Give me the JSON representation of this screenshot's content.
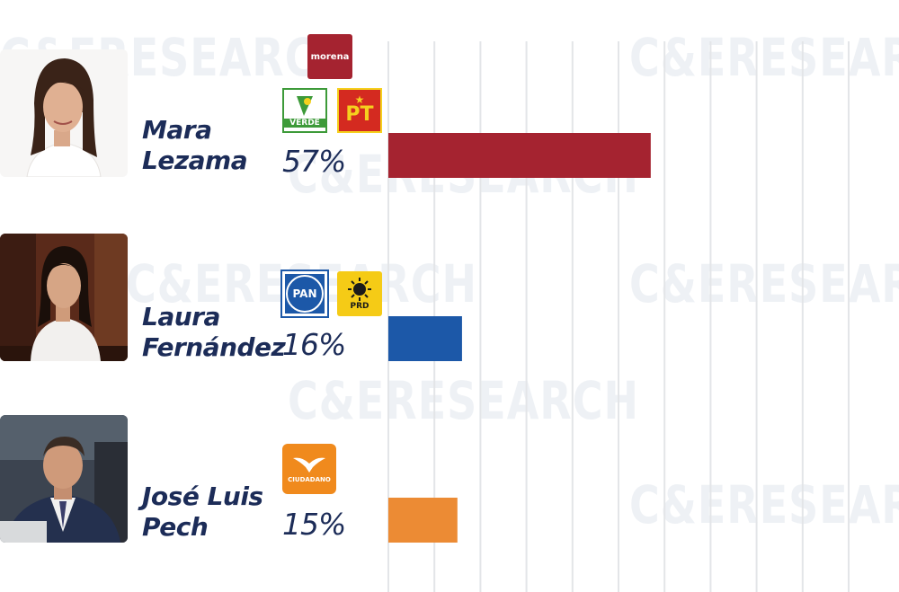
{
  "watermark_text": "C&ERESEARCH",
  "parties": {
    "morena": {
      "label": "morena",
      "color": "#a52330"
    },
    "verde": {
      "label": "VERDE",
      "color": "#3d9a39"
    },
    "pt": {
      "label": "PT",
      "color": "#d42a20",
      "text_color": "#f5d01e"
    },
    "pan": {
      "label": "PAN",
      "color": "#1c58a8"
    },
    "prd": {
      "label": "PRD",
      "color": "#f5cb16"
    },
    "mc": {
      "label": "CIUDADANO",
      "color": "#f08a1d"
    }
  },
  "chart_data": {
    "type": "bar",
    "orientation": "horizontal",
    "categories": [
      "Mara Lezama",
      "Laura Fernández",
      "José Luis Pech"
    ],
    "values": [
      57,
      16,
      15
    ],
    "value_labels": [
      "57%",
      "16%",
      "15%"
    ],
    "colors": [
      "#a52330",
      "#1c58a8",
      "#ec8b34"
    ],
    "xlim": [
      0,
      100
    ],
    "grid": true,
    "candidates": [
      {
        "first": "Mara",
        "last": "Lezama",
        "pct": "57%",
        "parties": [
          "morena",
          "verde",
          "pt"
        ]
      },
      {
        "first": "Laura",
        "last": "Fernández",
        "pct": "16%",
        "parties": [
          "pan",
          "prd"
        ]
      },
      {
        "first": "José Luis",
        "last": "Pech",
        "pct": "15%",
        "parties": [
          "mc"
        ]
      }
    ]
  }
}
